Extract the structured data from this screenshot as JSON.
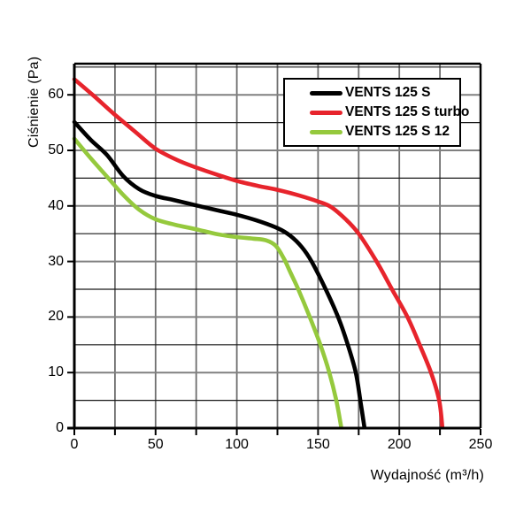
{
  "chart_data": {
    "type": "line",
    "title": "",
    "xlabel": "Wydajność (m³/h)",
    "ylabel": "Ciśnienie (Pa)",
    "xlim": [
      0,
      250
    ],
    "ylim": [
      0,
      65.6
    ],
    "x_tick_labels": [
      "0",
      "50",
      "100",
      "150",
      "200",
      "250"
    ],
    "x_tick_values": [
      0,
      50,
      100,
      150,
      200,
      250
    ],
    "x_minor_tick_step": 25,
    "y_tick_labels": [
      "0",
      "10",
      "20",
      "30",
      "40",
      "50",
      "60"
    ],
    "y_tick_values": [
      0,
      10,
      20,
      30,
      40,
      50,
      60
    ],
    "y_grid_step": 5,
    "x_grid_step": 25,
    "grid": "on",
    "grid_color_major": "#808080",
    "grid_color_minor": "#191919",
    "grid_color_vertical": "#6e6e6e",
    "axis_color": "#000000",
    "legend_position": "top-right",
    "series": [
      {
        "name": "VENTS 125 S",
        "color": "#000000",
        "points": [
          [
            0,
            55.1
          ],
          [
            10,
            51.9
          ],
          [
            20,
            49.2
          ],
          [
            30,
            45.4
          ],
          [
            40,
            43.0
          ],
          [
            50,
            41.8
          ],
          [
            62,
            41.0
          ],
          [
            75,
            40.1
          ],
          [
            88,
            39.2
          ],
          [
            100,
            38.4
          ],
          [
            112,
            37.4
          ],
          [
            125,
            36.0
          ],
          [
            133,
            34.6
          ],
          [
            140,
            32.6
          ],
          [
            146,
            30.0
          ],
          [
            154.7,
            25.0
          ],
          [
            162.3,
            20.0
          ],
          [
            168.3,
            15.0
          ],
          [
            173.2,
            10.0
          ],
          [
            176,
            5.0
          ],
          [
            178.6,
            0
          ]
        ]
      },
      {
        "name": "VENTS 125 S turbo",
        "color": "#e7242c",
        "points": [
          [
            0,
            62.8
          ],
          [
            12,
            59.8
          ],
          [
            25,
            56.4
          ],
          [
            38,
            53.2
          ],
          [
            50,
            50.3
          ],
          [
            63,
            48.3
          ],
          [
            75,
            46.9
          ],
          [
            88,
            45.6
          ],
          [
            100,
            44.5
          ],
          [
            113,
            43.6
          ],
          [
            125,
            42.9
          ],
          [
            138,
            41.9
          ],
          [
            150,
            40.8
          ],
          [
            158,
            39.8
          ],
          [
            167,
            37.6
          ],
          [
            175,
            35.0
          ],
          [
            186,
            30.0
          ],
          [
            195.5,
            25.0
          ],
          [
            205,
            20.0
          ],
          [
            212.5,
            15.0
          ],
          [
            219.5,
            10.0
          ],
          [
            224.5,
            5.0
          ],
          [
            226.5,
            0
          ]
        ]
      },
      {
        "name": "VENTS 125 S 12",
        "color": "#95c93d",
        "points": [
          [
            0,
            52.1
          ],
          [
            10,
            48.6
          ],
          [
            20,
            45.3
          ],
          [
            30,
            42.0
          ],
          [
            40,
            39.3
          ],
          [
            50,
            37.6
          ],
          [
            62,
            36.6
          ],
          [
            75,
            35.8
          ],
          [
            88,
            34.9
          ],
          [
            100,
            34.4
          ],
          [
            110,
            34.1
          ],
          [
            118,
            33.8
          ],
          [
            124,
            32.8
          ],
          [
            129,
            30.5
          ],
          [
            133,
            28.0
          ],
          [
            137.8,
            25.0
          ],
          [
            144.9,
            20.0
          ],
          [
            151.4,
            15.0
          ],
          [
            156.9,
            10.0
          ],
          [
            161.2,
            5.0
          ],
          [
            164.3,
            0
          ]
        ]
      }
    ]
  }
}
